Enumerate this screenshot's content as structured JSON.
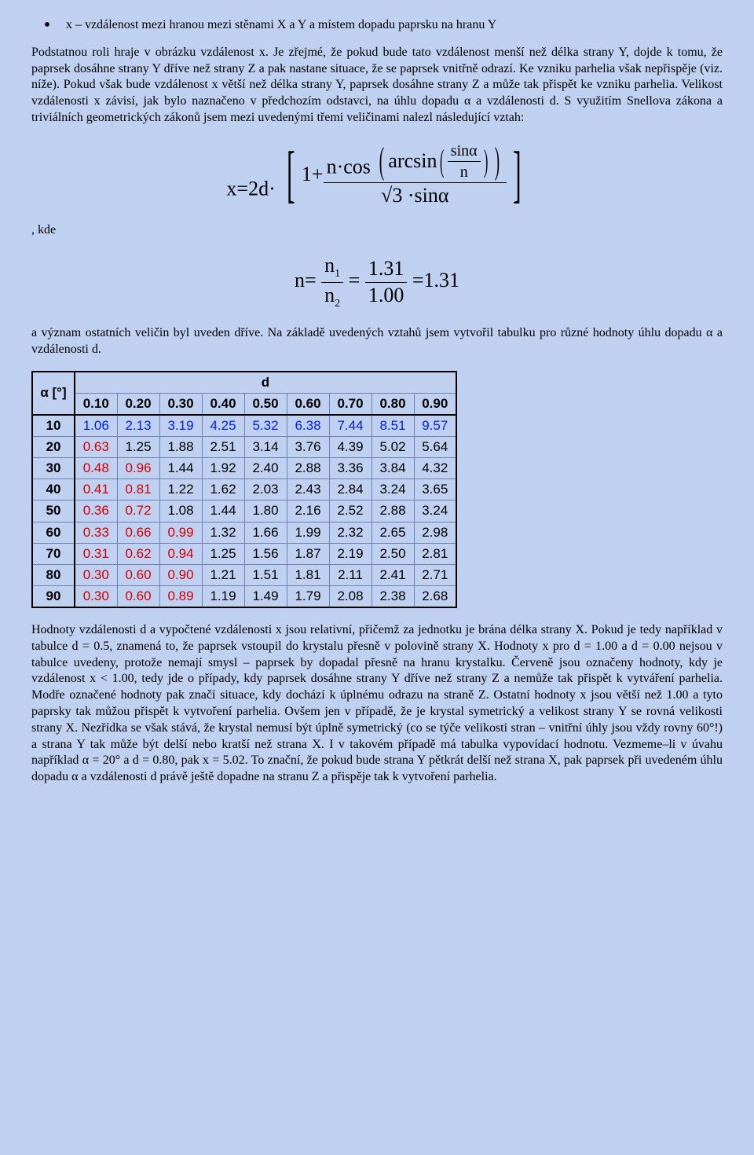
{
  "bullet": "x – vzdálenost mezi hranou mezi stěnami X a Y a místem dopadu paprsku na hranu Y",
  "para_intro": "Podstatnou roli hraje v obrázku vzdálenost x. Je zřejmé, že pokud bude tato vzdálenost menší než délka strany Y, dojde k tomu, že paprsek dosáhne strany Y dříve než strany Z a pak nastane situace, že se paprsek vnitřně odrazí. Ke vzniku parhelia však nepřispěje (viz. níže). Pokud však bude vzdálenost x větší než délka strany Y, paprsek dosáhne strany Z a může tak přispět ke vzniku parhelia. Velikost vzdálenosti x závisí, jak bylo naznačeno v předchozím odstavci, na úhlu dopadu α a vzdálenosti d. S využitím Snellova zákona a triviálních geometrických zákonů jsem mezi uvedenými třemi veličinami nalezl následující vztah:",
  "formula1": {
    "lhs": "x=2d·",
    "one_plus": "1+",
    "num1": "n·cos",
    "num2": "arcsin",
    "inner_frac_num": "sinα",
    "inner_frac_den": "n",
    "den_sqrt": "√3",
    "den_rest": "·sinα"
  },
  "kde": ", kde",
  "formula2": {
    "lhs": "n=",
    "n1": "n",
    "sub1": "1",
    "n2": "n",
    "sub2": "2",
    "eq": "=",
    "val_num": "1.31",
    "val_den": "1.00",
    "eq2": "=1.31"
  },
  "para_after": "a význam ostatních veličin byl uveden dříve. Na základě uvedených vztahů jsem vytvořil tabulku pro různé hodnoty úhlu dopadu α a vzdálenosti d.",
  "table": {
    "alpha_label": "α [°]",
    "d_label": "d",
    "d_values": [
      "0.10",
      "0.20",
      "0.30",
      "0.40",
      "0.50",
      "0.60",
      "0.70",
      "0.80",
      "0.90"
    ],
    "rows": [
      {
        "a": "10",
        "v": [
          "1.06",
          "2.13",
          "3.19",
          "4.25",
          "5.32",
          "6.38",
          "7.44",
          "8.51",
          "9.57"
        ],
        "c": [
          "b",
          "b",
          "b",
          "b",
          "b",
          "b",
          "b",
          "b",
          "b"
        ]
      },
      {
        "a": "20",
        "v": [
          "0.63",
          "1.25",
          "1.88",
          "2.51",
          "3.14",
          "3.76",
          "4.39",
          "5.02",
          "5.64"
        ],
        "c": [
          "r",
          "",
          "",
          "",
          "",
          "",
          "",
          "",
          ""
        ]
      },
      {
        "a": "30",
        "v": [
          "0.48",
          "0.96",
          "1.44",
          "1.92",
          "2.40",
          "2.88",
          "3.36",
          "3.84",
          "4.32"
        ],
        "c": [
          "r",
          "r",
          "",
          "",
          "",
          "",
          "",
          "",
          ""
        ]
      },
      {
        "a": "40",
        "v": [
          "0.41",
          "0.81",
          "1.22",
          "1.62",
          "2.03",
          "2.43",
          "2.84",
          "3.24",
          "3.65"
        ],
        "c": [
          "r",
          "r",
          "",
          "",
          "",
          "",
          "",
          "",
          ""
        ]
      },
      {
        "a": "50",
        "v": [
          "0.36",
          "0.72",
          "1.08",
          "1.44",
          "1.80",
          "2.16",
          "2.52",
          "2.88",
          "3.24"
        ],
        "c": [
          "r",
          "r",
          "",
          "",
          "",
          "",
          "",
          "",
          ""
        ]
      },
      {
        "a": "60",
        "v": [
          "0.33",
          "0.66",
          "0.99",
          "1.32",
          "1.66",
          "1.99",
          "2.32",
          "2.65",
          "2.98"
        ],
        "c": [
          "r",
          "r",
          "r",
          "",
          "",
          "",
          "",
          "",
          ""
        ]
      },
      {
        "a": "70",
        "v": [
          "0.31",
          "0.62",
          "0.94",
          "1.25",
          "1.56",
          "1.87",
          "2.19",
          "2.50",
          "2.81"
        ],
        "c": [
          "r",
          "r",
          "r",
          "",
          "",
          "",
          "",
          "",
          ""
        ]
      },
      {
        "a": "80",
        "v": [
          "0.30",
          "0.60",
          "0.90",
          "1.21",
          "1.51",
          "1.81",
          "2.11",
          "2.41",
          "2.71"
        ],
        "c": [
          "r",
          "r",
          "r",
          "",
          "",
          "",
          "",
          "",
          ""
        ]
      },
      {
        "a": "90",
        "v": [
          "0.30",
          "0.60",
          "0.89",
          "1.19",
          "1.49",
          "1.79",
          "2.08",
          "2.38",
          "2.68"
        ],
        "c": [
          "r",
          "r",
          "r",
          "",
          "",
          "",
          "",
          "",
          ""
        ]
      }
    ]
  },
  "para_bottom": "Hodnoty vzdálenosti d a vypočtené vzdálenosti x jsou relativní, přičemž za jednotku je brána délka strany X. Pokud je tedy například v tabulce d = 0.5, znamená to, že paprsek vstoupil do krystalu přesně v polovině strany X. Hodnoty x pro d = 1.00 a d = 0.00 nejsou v tabulce uvedeny, protože nemají smysl – paprsek by dopadal přesně na hranu krystalku. Červeně jsou označeny hodnoty, kdy je vzdálenost x < 1.00, tedy jde o případy, kdy paprsek dosáhne strany Y dříve než strany Z a nemůže tak přispět k vytváření parhelia. Modře označené hodnoty pak značí situace, kdy dochází k úplnému odrazu na straně Z. Ostatní hodnoty x jsou větší než 1.00 a tyto paprsky tak můžou přispět k vytvoření parhelia. Ovšem jen v případě, že je krystal symetrický a velikost strany Y se rovná velikosti strany X. Nezřídka se však stává, že krystal nemusí být úplně symetrický (co se týče velikosti stran – vnitřní úhly jsou vždy rovny 60°!) a strana Y tak může být delší nebo kratší než strana X. I v takovém případě má tabulka vypovídací hodnotu. Vezmeme–li v úvahu například α = 20° a d = 0.80, pak x = 5.02. To znační, že pokud bude strana Y pětkrát delší než strana X, pak paprsek při uvedeném úhlu dopadu α a vzdálenosti d právě ještě dopadne na stranu Z a přispěje tak k vytvoření parhelia."
}
